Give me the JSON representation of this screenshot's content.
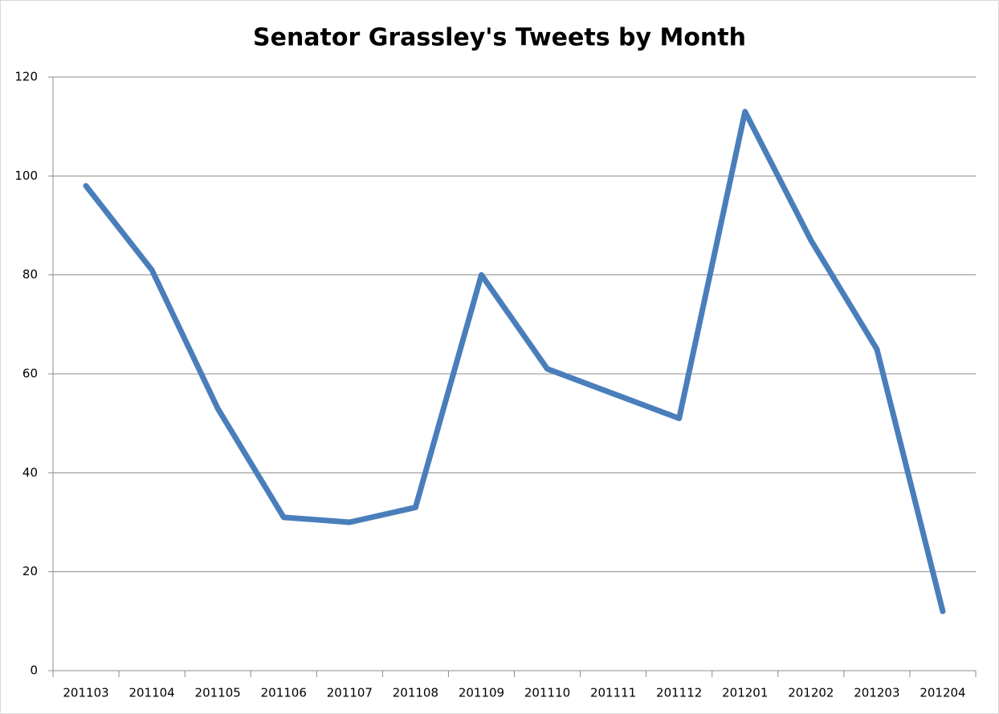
{
  "chart_data": {
    "type": "line",
    "title": "Senator Grassley's Tweets by Month",
    "categories": [
      "201103",
      "201104",
      "201105",
      "201106",
      "201107",
      "201108",
      "201109",
      "201110",
      "201111",
      "201112",
      "201201",
      "201202",
      "201203",
      "201204"
    ],
    "values": [
      98,
      81,
      53,
      31,
      30,
      33,
      80,
      61,
      56,
      51,
      113,
      87,
      65,
      12
    ],
    "color": "#4a7ebb",
    "ylim": [
      0,
      120
    ],
    "yticks": [
      0,
      20,
      40,
      60,
      80,
      100,
      120
    ],
    "grid": true
  }
}
